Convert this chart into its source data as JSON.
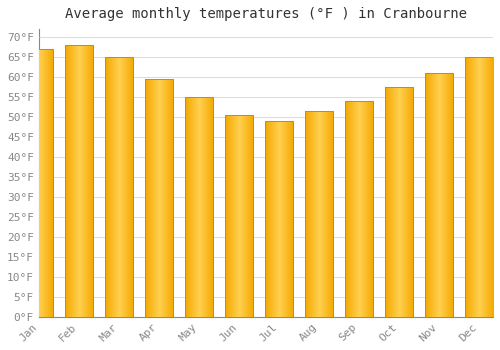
{
  "title": "Average monthly temperatures (°F ) in Cranbourne",
  "months": [
    "Jan",
    "Feb",
    "Mar",
    "Apr",
    "May",
    "Jun",
    "Jul",
    "Aug",
    "Sep",
    "Oct",
    "Nov",
    "Dec"
  ],
  "values": [
    67,
    68,
    65,
    59.5,
    55,
    50.5,
    49,
    51.5,
    54,
    57.5,
    61,
    65
  ],
  "bar_color_left": "#F5A800",
  "bar_color_center": "#FFD050",
  "bar_color_right": "#F5A800",
  "bar_edge_color": "#D4880A",
  "background_color": "#FFFFFF",
  "plot_bg_color": "#FFFFFF",
  "grid_color": "#CCCCCC",
  "ylim": [
    0,
    72
  ],
  "yticks": [
    0,
    5,
    10,
    15,
    20,
    25,
    30,
    35,
    40,
    45,
    50,
    55,
    60,
    65,
    70
  ],
  "ytick_labels": [
    "0°F",
    "5°F",
    "10°F",
    "15°F",
    "20°F",
    "25°F",
    "30°F",
    "35°F",
    "40°F",
    "45°F",
    "50°F",
    "55°F",
    "60°F",
    "65°F",
    "70°F"
  ],
  "title_fontsize": 10,
  "tick_fontsize": 8,
  "font_family": "monospace",
  "tick_color": "#888888",
  "title_color": "#333333",
  "bar_width": 0.7,
  "figsize": [
    5.0,
    3.5
  ],
  "dpi": 100
}
